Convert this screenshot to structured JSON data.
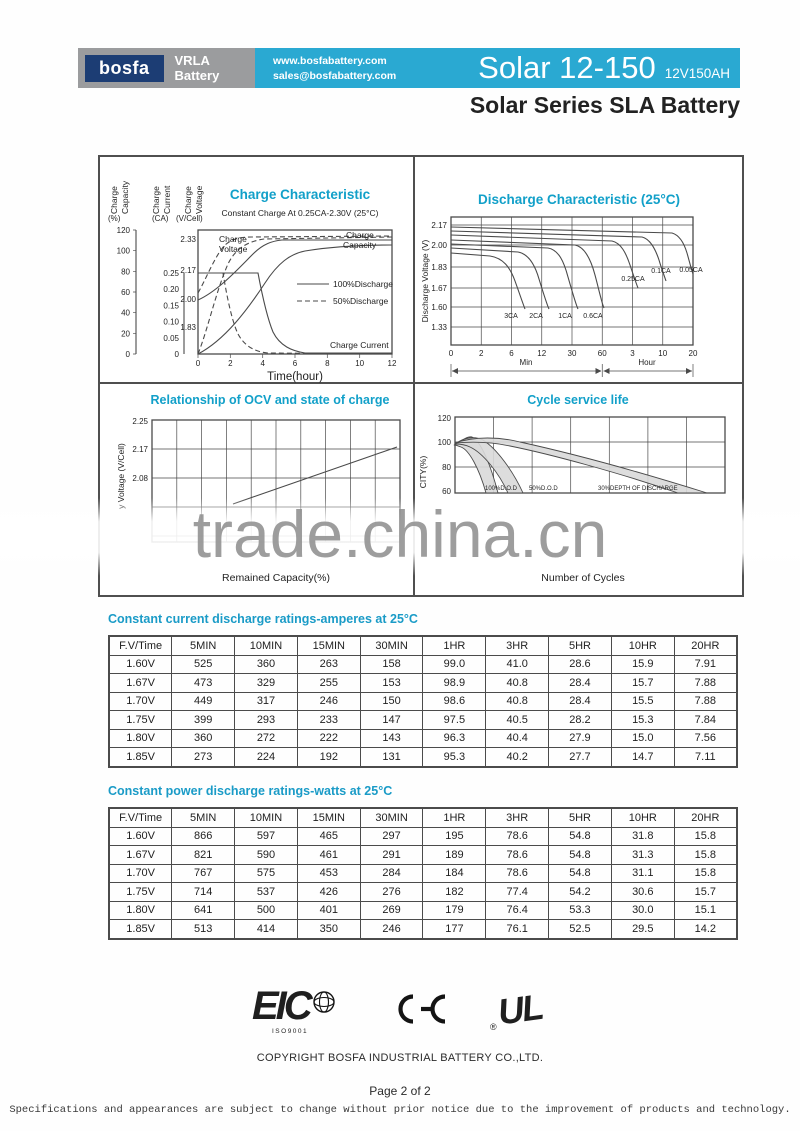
{
  "header": {
    "logo": "bosfa",
    "logo_tagline": "VRLA Battery",
    "website": "www.bosfabattery.com",
    "email": "sales@bosfabattery.com",
    "model": "Solar 12-150",
    "rating": "12V150AH",
    "series": "Solar Series SLA Battery"
  },
  "watermark": "trade.china.cn",
  "chart_data": [
    {
      "type": "line",
      "title": "Charge Characteristic",
      "subtitle": "Constant Charge At 0.25CA-2.30V  (25°C)",
      "xlabel": "Time(hour)",
      "x_ticks": [
        "0",
        "2",
        "4",
        "6",
        "8",
        "10",
        "12"
      ],
      "axes": {
        "capacity": {
          "label1": "Charge",
          "label2": "Capacity",
          "unit": "(%)",
          "ticks": [
            "120",
            "100",
            "80",
            "60",
            "40",
            "20",
            "0"
          ]
        },
        "current": {
          "label1": "Charge",
          "label2": "Current",
          "unit": "(CA)",
          "ticks": [
            "0.25",
            "0.20",
            "0.15",
            "0.10",
            "0.05",
            "0"
          ]
        },
        "voltage": {
          "label1": "Charge",
          "label2": "Voltage",
          "unit": "(V/Cell)",
          "ticks": [
            "2.33",
            "2.17",
            "2.00",
            "1.83"
          ]
        }
      },
      "legend": [
        {
          "style": "solid",
          "label": "100%Discharge"
        },
        {
          "style": "dashed",
          "label": "50%Discharge"
        }
      ],
      "annotations": {
        "voltage1": "Charge",
        "voltage2": "Voltage",
        "capacity1": "Charge",
        "capacity2": "Capacity",
        "current": "Charge Current"
      },
      "series": [
        {
          "name": "Charge Voltage 100% discharged",
          "style": "solid",
          "x_hours": [
            0,
            1,
            2,
            3,
            4,
            5,
            12
          ],
          "v_per_cell": [
            2.0,
            2.06,
            2.14,
            2.25,
            2.31,
            2.33,
            2.33
          ]
        },
        {
          "name": "Charge Voltage 50% discharged",
          "style": "dashed",
          "x_hours": [
            0,
            0.5,
            1,
            1.5,
            2,
            12
          ],
          "v_per_cell": [
            2.03,
            2.1,
            2.2,
            2.29,
            2.33,
            2.34
          ]
        },
        {
          "name": "Charge Capacity 100% discharged",
          "style": "solid",
          "x_hours": [
            0,
            2,
            4,
            6,
            8,
            12
          ],
          "capacity_pct": [
            0,
            30,
            68,
            95,
            102,
            105
          ]
        },
        {
          "name": "Charge Capacity 50% discharged",
          "style": "dashed",
          "x_hours": [
            0,
            1,
            2,
            3,
            4,
            12
          ],
          "capacity_pct": [
            0,
            35,
            75,
            98,
            106,
            110
          ]
        },
        {
          "name": "Charge Current 100% discharged",
          "style": "solid",
          "x_hours": [
            0,
            3.7,
            4.5,
            6,
            12
          ],
          "current_ca": [
            0.25,
            0.25,
            0.1,
            0.01,
            0.01
          ]
        },
        {
          "name": "Charge Current 50% discharged",
          "style": "dashed",
          "x_hours": [
            0,
            1.6,
            2.4,
            4,
            12
          ],
          "current_ca": [
            0.25,
            0.25,
            0.08,
            0.01,
            0.01
          ]
        }
      ]
    },
    {
      "type": "line",
      "title": "Discharge Characteristic  (25°C)",
      "ylabel": "Discharge Voltage (V)",
      "y_ticks": [
        "2.17",
        "2.00",
        "1.83",
        "1.67",
        "1.60",
        "1.33"
      ],
      "x_ticks": [
        "0",
        "2",
        "6",
        "12",
        "30",
        "60",
        "3",
        "10",
        "20"
      ],
      "x_units": [
        {
          "label": "Min"
        },
        {
          "label": "Hour"
        }
      ],
      "series": [
        {
          "name": "3CA",
          "start_v": 1.93,
          "cutoff_at": "≈6 min"
        },
        {
          "name": "2CA",
          "start_v": 1.96,
          "cutoff_at": "≈12 min"
        },
        {
          "name": "1CA",
          "start_v": 1.99,
          "cutoff_at": "≈30 min"
        },
        {
          "name": "0.6CA",
          "start_v": 2.02,
          "cutoff_at": "≈55 min"
        },
        {
          "name": "0.25CA",
          "start_v": 2.05,
          "cutoff_at": "≈3.3 hr"
        },
        {
          "name": "0.1CA",
          "start_v": 2.08,
          "cutoff_at": "≈10 hr"
        },
        {
          "name": "0.05CA",
          "start_v": 2.11,
          "cutoff_at": "≈20 hr"
        }
      ]
    },
    {
      "type": "line",
      "title": "Relationship of OCV and state of charge",
      "ylabel": "y Voltage (V/Cell)",
      "xlabel": "Remained Capacity(%)",
      "y_ticks": [
        "2.25",
        "2.17",
        "2.08"
      ],
      "series": [
        {
          "name": "OCV",
          "points_pct_v": [
            [
              40,
              2.02
            ],
            [
              100,
              2.18
            ]
          ]
        }
      ]
    },
    {
      "type": "line",
      "title": "Cycle service life",
      "ylabel": "CITY(%)",
      "xlabel": "Number of Cycles",
      "y_ticks": [
        "120",
        "100",
        "80",
        "60"
      ],
      "series": [
        {
          "name": "100%D.O.D"
        },
        {
          "name": "50%D.O.D"
        },
        {
          "name": "30%DEPTH OF DISCHARGE"
        }
      ]
    }
  ],
  "tables": {
    "current": {
      "title": "Constant current discharge ratings-amperes at 25°C",
      "headers": [
        "F.V/Time",
        "5MIN",
        "10MIN",
        "15MIN",
        "30MIN",
        "1HR",
        "3HR",
        "5HR",
        "10HR",
        "20HR"
      ],
      "rows": [
        [
          "1.60V",
          "525",
          "360",
          "263",
          "158",
          "99.0",
          "41.0",
          "28.6",
          "15.9",
          "7.91"
        ],
        [
          "1.67V",
          "473",
          "329",
          "255",
          "153",
          "98.9",
          "40.8",
          "28.4",
          "15.7",
          "7.88"
        ],
        [
          "1.70V",
          "449",
          "317",
          "246",
          "150",
          "98.6",
          "40.8",
          "28.4",
          "15.5",
          "7.88"
        ],
        [
          "1.75V",
          "399",
          "293",
          "233",
          "147",
          "97.5",
          "40.5",
          "28.2",
          "15.3",
          "7.84"
        ],
        [
          "1.80V",
          "360",
          "272",
          "222",
          "143",
          "96.3",
          "40.4",
          "27.9",
          "15.0",
          "7.56"
        ],
        [
          "1.85V",
          "273",
          "224",
          "192",
          "131",
          "95.3",
          "40.2",
          "27.7",
          "14.7",
          "7.11"
        ]
      ]
    },
    "power": {
      "title": "Constant power discharge ratings-watts at 25°C",
      "headers": [
        "F.V/Time",
        "5MIN",
        "10MIN",
        "15MIN",
        "30MIN",
        "1HR",
        "3HR",
        "5HR",
        "10HR",
        "20HR"
      ],
      "rows": [
        [
          "1.60V",
          "866",
          "597",
          "465",
          "297",
          "195",
          "78.6",
          "54.8",
          "31.8",
          "15.8"
        ],
        [
          "1.67V",
          "821",
          "590",
          "461",
          "291",
          "189",
          "78.6",
          "54.8",
          "31.3",
          "15.8"
        ],
        [
          "1.70V",
          "767",
          "575",
          "453",
          "284",
          "184",
          "78.6",
          "54.8",
          "31.1",
          "15.8"
        ],
        [
          "1.75V",
          "714",
          "537",
          "426",
          "276",
          "182",
          "77.4",
          "54.2",
          "30.6",
          "15.7"
        ],
        [
          "1.80V",
          "641",
          "500",
          "401",
          "269",
          "179",
          "76.4",
          "53.3",
          "30.0",
          "15.1"
        ],
        [
          "1.85V",
          "513",
          "414",
          "350",
          "246",
          "177",
          "76.1",
          "52.5",
          "29.5",
          "14.2"
        ]
      ]
    }
  },
  "certs": {
    "eic": "EIC",
    "iso": "ISO9001",
    "ce": "CE",
    "ul": "UL",
    "ul_r": "®"
  },
  "footer": {
    "copyright": "COPYRIGHT BOSFA INDUSTRIAL BATTERY CO.,LTD.",
    "page": "Page 2 of 2",
    "disclaimer": "Specifications and appearances are subject to change without prior notice due to the improvement of products and technology."
  }
}
